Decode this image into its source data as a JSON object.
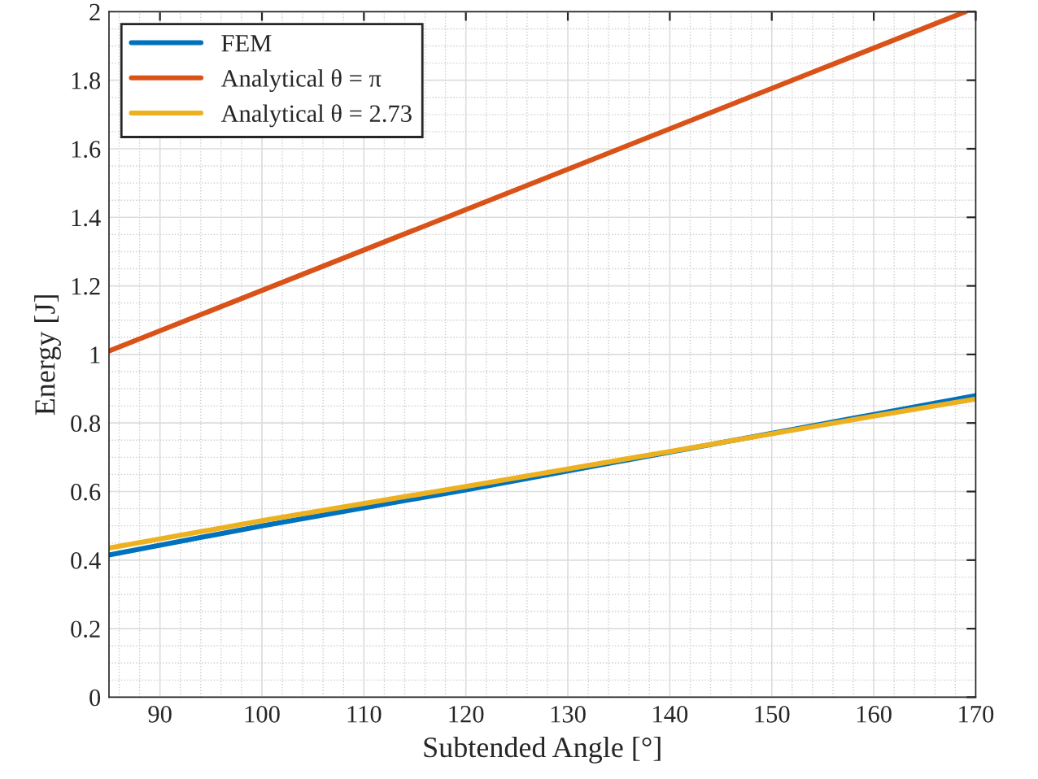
{
  "chart_data": {
    "type": "line",
    "xlabel": "Subtended Angle [°]",
    "ylabel": "Energy [J]",
    "xlim": [
      85,
      170
    ],
    "xticks": [
      90,
      100,
      110,
      120,
      130,
      140,
      150,
      160,
      170
    ],
    "ylim": [
      0,
      2
    ],
    "yticks": [
      0,
      0.2,
      0.4,
      0.6,
      0.8,
      1,
      1.2,
      1.4,
      1.6,
      1.8,
      2
    ],
    "grid": true,
    "legend": "top left",
    "line_style": "solid",
    "marker": "none",
    "series": [
      {
        "name": "FEM",
        "color": "#0072bd",
        "x": [
          85,
          100,
          120,
          140,
          160,
          170
        ],
        "values": [
          0.415,
          0.5,
          0.605,
          0.715,
          0.825,
          0.88
        ]
      },
      {
        "name": "Analytical θ = π",
        "color": "#d95319",
        "x": [
          85,
          169
        ],
        "values": [
          1.01,
          2.0
        ]
      },
      {
        "name": "Analytical θ = 2.73",
        "color": "#edb120",
        "x": [
          85,
          100,
          120,
          140,
          160,
          170
        ],
        "values": [
          0.435,
          0.515,
          0.615,
          0.717,
          0.82,
          0.87
        ]
      }
    ]
  }
}
